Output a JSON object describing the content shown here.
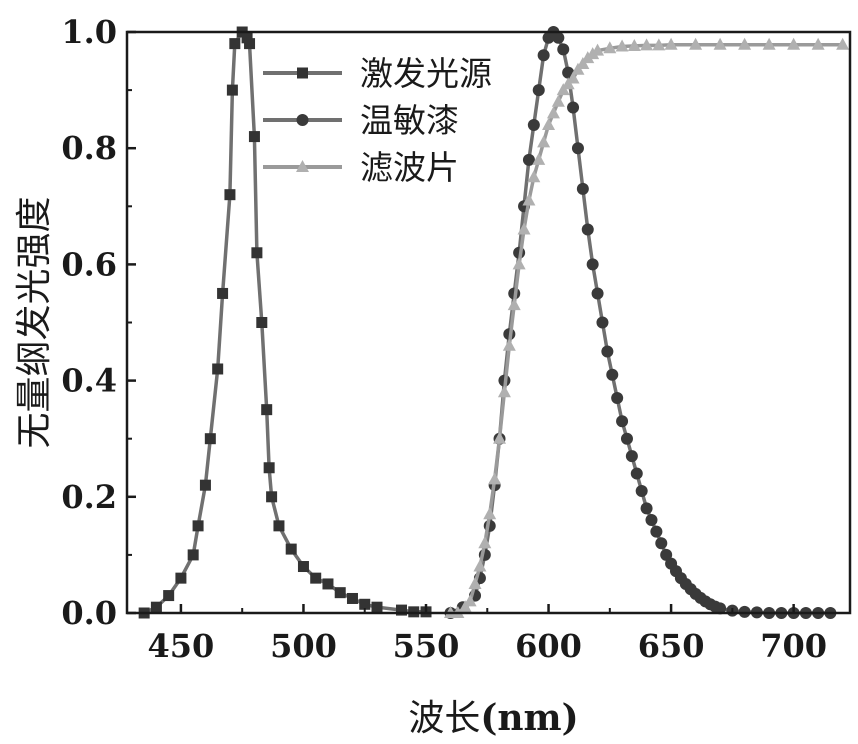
{
  "chart_data": {
    "type": "line",
    "xlabel": "波长(nm)",
    "ylabel": "无量纲发光强度",
    "xlim": [
      428,
      723
    ],
    "ylim": [
      0,
      1.0
    ],
    "xticks": [
      450,
      500,
      550,
      600,
      650,
      700
    ],
    "yticks": [
      0.0,
      0.2,
      0.4,
      0.6,
      0.8,
      1.0
    ],
    "xtick_labels": [
      "450",
      "500",
      "550",
      "600",
      "650",
      "700"
    ],
    "ytick_labels": [
      "0.0",
      "0.2",
      "0.4",
      "0.6",
      "0.8",
      "1.0"
    ],
    "grid": false,
    "legend_position": "top-center",
    "series": [
      {
        "name": "激发光源",
        "marker": "square",
        "color": "#333333",
        "line_color": "#707070",
        "x": [
          435,
          440,
          445,
          450,
          455,
          457,
          460,
          462,
          465,
          467,
          470,
          471,
          472,
          475,
          477,
          478,
          480,
          481,
          483,
          485,
          486,
          487,
          490,
          495,
          500,
          505,
          510,
          515,
          520,
          525,
          530,
          540,
          545,
          550
        ],
        "y": [
          0.0,
          0.01,
          0.03,
          0.06,
          0.1,
          0.15,
          0.22,
          0.3,
          0.42,
          0.55,
          0.72,
          0.9,
          0.98,
          1.0,
          0.99,
          0.98,
          0.82,
          0.62,
          0.5,
          0.35,
          0.25,
          0.2,
          0.15,
          0.11,
          0.08,
          0.06,
          0.05,
          0.035,
          0.025,
          0.015,
          0.01,
          0.005,
          0.002,
          0.002
        ]
      },
      {
        "name": "温敏漆",
        "marker": "circle",
        "color": "#3a3a3a",
        "line_color": "#707070",
        "x": [
          560,
          565,
          570,
          572,
          574,
          576,
          578,
          580,
          582,
          584,
          586,
          588,
          590,
          592,
          594,
          596,
          598,
          600,
          602,
          604,
          606,
          608,
          610,
          612,
          614,
          616,
          618,
          620,
          622,
          624,
          626,
          628,
          630,
          632,
          634,
          636,
          638,
          640,
          642,
          644,
          646,
          648,
          650,
          652,
          654,
          656,
          658,
          660,
          662,
          664,
          666,
          668,
          670,
          675,
          680,
          685,
          690,
          695,
          700,
          705,
          710,
          715
        ],
        "y": [
          0.0,
          0.01,
          0.03,
          0.06,
          0.1,
          0.15,
          0.22,
          0.3,
          0.4,
          0.48,
          0.55,
          0.62,
          0.7,
          0.78,
          0.84,
          0.9,
          0.96,
          0.99,
          1.0,
          0.99,
          0.97,
          0.93,
          0.87,
          0.8,
          0.73,
          0.66,
          0.6,
          0.55,
          0.5,
          0.45,
          0.41,
          0.37,
          0.33,
          0.3,
          0.27,
          0.24,
          0.21,
          0.18,
          0.16,
          0.14,
          0.12,
          0.1,
          0.085,
          0.072,
          0.06,
          0.05,
          0.041,
          0.033,
          0.026,
          0.02,
          0.015,
          0.011,
          0.008,
          0.004,
          0.002,
          0.001,
          0.0,
          0.0,
          0.0,
          0.0,
          0.0,
          0.0
        ]
      },
      {
        "name": "滤波片",
        "marker": "triangle",
        "color": "#b0b0b0",
        "line_color": "#9a9a9a",
        "x": [
          560,
          563,
          566,
          568,
          570,
          572,
          574,
          576,
          578,
          580,
          582,
          584,
          586,
          588,
          590,
          592,
          594,
          596,
          598,
          600,
          602,
          604,
          606,
          608,
          610,
          612,
          614,
          616,
          618,
          620,
          625,
          630,
          635,
          640,
          645,
          650,
          660,
          670,
          680,
          690,
          700,
          710,
          720
        ],
        "y": [
          0.0,
          0.0,
          0.01,
          0.02,
          0.05,
          0.08,
          0.12,
          0.17,
          0.23,
          0.3,
          0.38,
          0.46,
          0.53,
          0.6,
          0.66,
          0.71,
          0.75,
          0.78,
          0.81,
          0.84,
          0.86,
          0.88,
          0.9,
          0.91,
          0.92,
          0.935,
          0.945,
          0.955,
          0.962,
          0.968,
          0.972,
          0.975,
          0.976,
          0.977,
          0.977,
          0.978,
          0.978,
          0.978,
          0.978,
          0.978,
          0.978,
          0.978,
          0.978
        ]
      }
    ]
  }
}
